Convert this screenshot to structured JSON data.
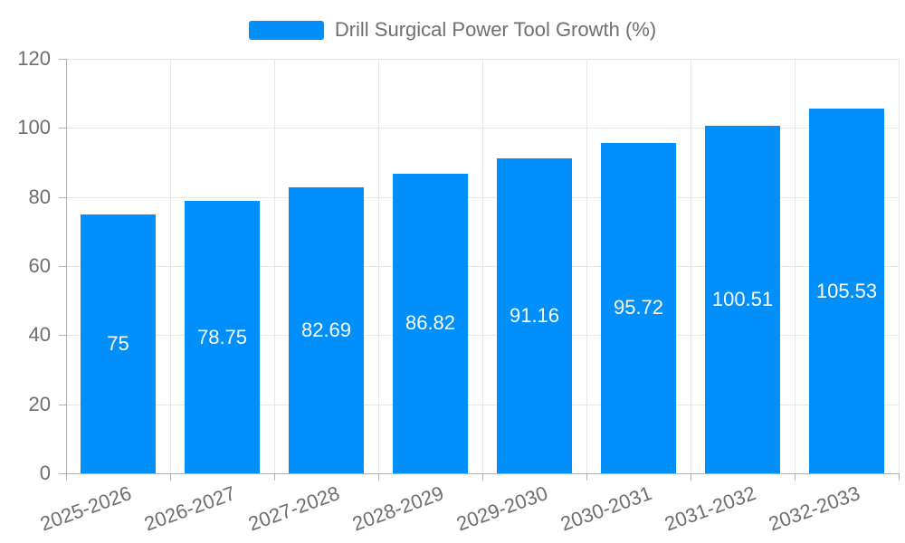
{
  "chart_data": {
    "type": "bar",
    "title": "Drill Surgical Power Tool Growth (%)",
    "categories": [
      "2025-2026",
      "2026-2027",
      "2027-2028",
      "2028-2029",
      "2029-2030",
      "2030-2031",
      "2031-2032",
      "2032-2033"
    ],
    "values": [
      75,
      78.75,
      82.69,
      86.82,
      91.16,
      95.72,
      100.51,
      105.53
    ],
    "value_labels": [
      "75",
      "78.75",
      "82.69",
      "86.82",
      "91.16",
      "95.72",
      "100.51",
      "105.53"
    ],
    "xlabel": "",
    "ylabel": "",
    "ylim": [
      0,
      120
    ],
    "y_ticks": [
      0,
      20,
      40,
      60,
      80,
      100,
      120
    ],
    "grid": "both",
    "legend_position": "top"
  },
  "legend": {
    "swatch_color": "#008FFB"
  },
  "colors": {
    "bar": "#008FFB",
    "grid": "#e7e7e7",
    "axis": "#b1b1b1",
    "tick_text": "#6e6e6e",
    "legend_text": "#6f6f6f",
    "value_text": "#ffffff"
  }
}
